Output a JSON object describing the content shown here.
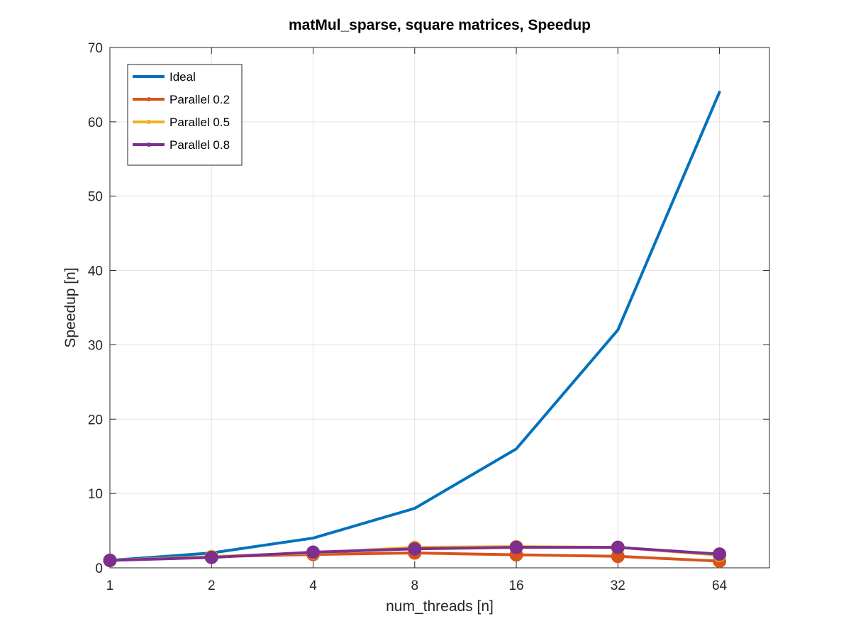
{
  "chart_data": {
    "type": "line",
    "title": "matMul_sparse, square matrices, Speedup",
    "xlabel": "num_threads [n]",
    "ylabel": "Speedup [n]",
    "x_scale": "log2",
    "x": [
      1,
      2,
      4,
      8,
      16,
      32,
      64
    ],
    "x_tick_labels": [
      "1",
      "2",
      "4",
      "8",
      "16",
      "32",
      "64"
    ],
    "xlim": [
      1,
      90
    ],
    "ylim": [
      0,
      70
    ],
    "y_ticks": [
      0,
      10,
      20,
      30,
      40,
      50,
      60,
      70
    ],
    "y_tick_labels": [
      "0",
      "10",
      "20",
      "30",
      "40",
      "50",
      "60",
      "70"
    ],
    "grid": true,
    "legend_position": "top-left",
    "series": [
      {
        "name": "Ideal",
        "color": "#0072BD",
        "markers": false,
        "values": [
          1,
          2,
          4,
          8,
          16,
          32,
          64
        ]
      },
      {
        "name": "Parallel 0.2",
        "color": "#D95319",
        "markers": true,
        "values": [
          1.0,
          1.5,
          1.8,
          2.0,
          1.75,
          1.55,
          0.9
        ]
      },
      {
        "name": "Parallel 0.5",
        "color": "#EDB120",
        "markers": true,
        "values": [
          1.0,
          1.5,
          2.0,
          2.75,
          2.85,
          2.75,
          1.7
        ]
      },
      {
        "name": "Parallel 0.8",
        "color": "#7E2F8E",
        "markers": true,
        "values": [
          1.0,
          1.4,
          2.1,
          2.55,
          2.75,
          2.75,
          1.85
        ]
      }
    ]
  }
}
